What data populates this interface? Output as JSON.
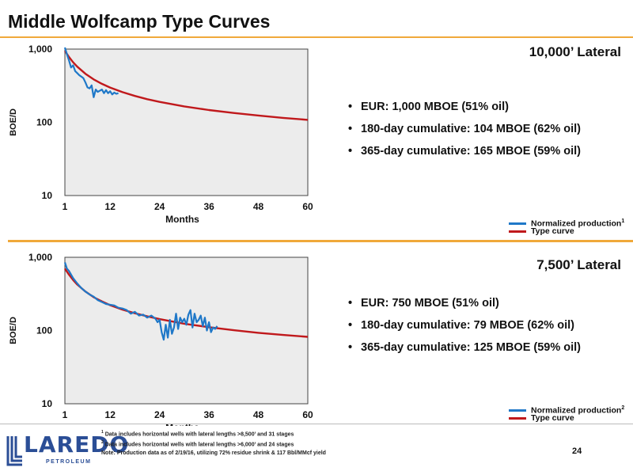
{
  "title": "Middle Wolfcamp Type Curves",
  "page_number": "24",
  "colors": {
    "accent_rule": "#f0a93a",
    "normalized_production": "#1f78c8",
    "type_curve": "#c0191c",
    "plot_fill": "#ececec",
    "logo_blue": "#2b4e96"
  },
  "logo": {
    "word": "LAREDO",
    "sub": "PETROLEUM"
  },
  "panels": [
    {
      "lateral": "10,000’ Lateral",
      "bullets": [
        "EUR:  1,000 MBOE (51% oil)",
        "180-day cumulative:  104 MBOE (62% oil)",
        "365-day cumulative: 165 MBOE (59% oil)"
      ],
      "legend": {
        "normalized_label": "Normalized production",
        "normalized_sup": "1",
        "type_label": "Type curve"
      }
    },
    {
      "lateral": "7,500’ Lateral",
      "bullets": [
        "EUR:  750 MBOE (51% oil)",
        "180-day cumulative: 79 MBOE (62% oil)",
        "365-day cumulative: 125 MBOE (59% oil)"
      ],
      "legend": {
        "normalized_label": "Normalized production",
        "normalized_sup": "2",
        "type_label": "Type curve"
      }
    }
  ],
  "footnotes": {
    "n1_sup": "1",
    "n1": " Data includes horizontal wells with lateral lengths >8,500’ and 31 stages",
    "n2_sup": "2",
    "n2": " Data includes horizontal wells with lateral lengths >6,000’ and 24 stages",
    "note": "Note: Production data as of 2/19/16, utilizing 72% residue shrink & 117 Bbl/MMcf yield"
  },
  "chart_data": [
    {
      "type": "line",
      "xlabel": "Months",
      "ylabel": "BOE/D",
      "y_scale": "log",
      "xlim": [
        1,
        60
      ],
      "ylim": [
        10,
        1000
      ],
      "x_ticks": [
        1,
        12,
        24,
        36,
        48,
        60
      ],
      "x_tick_labels": [
        "1",
        "12",
        "24",
        "36",
        "48",
        "60"
      ],
      "y_ticks": [
        10,
        100,
        1000
      ],
      "y_tick_labels": [
        "10",
        "100",
        "1,000"
      ],
      "grid": false,
      "legend_position": "bottom-right",
      "series": [
        {
          "name": "Normalized production",
          "color": "#1f78c8",
          "x": [
            1,
            1.5,
            2,
            2.5,
            3,
            3.5,
            4,
            4.5,
            5,
            5.5,
            6,
            6.5,
            7,
            7.5,
            8,
            8.5,
            9,
            9.5,
            10,
            10.5,
            11,
            11.5,
            12,
            12.5,
            13,
            13.5,
            14
          ],
          "y": [
            1050,
            850,
            700,
            560,
            600,
            500,
            470,
            440,
            420,
            400,
            350,
            300,
            290,
            320,
            220,
            280,
            260,
            270,
            280,
            250,
            275,
            250,
            265,
            240,
            255,
            245,
            250
          ]
        },
        {
          "name": "Type curve",
          "color": "#c0191c",
          "x": [
            1,
            2,
            3,
            4,
            6,
            8,
            10,
            12,
            15,
            18,
            21,
            24,
            30,
            36,
            42,
            48,
            54,
            60
          ],
          "y": [
            950,
            780,
            660,
            575,
            460,
            385,
            335,
            298,
            258,
            229,
            207,
            190,
            165,
            147,
            134,
            124,
            115,
            108
          ]
        }
      ]
    },
    {
      "type": "line",
      "xlabel": "Months",
      "ylabel": "BOE/D",
      "y_scale": "log",
      "xlim": [
        1,
        60
      ],
      "ylim": [
        10,
        1000
      ],
      "x_ticks": [
        1,
        12,
        24,
        36,
        48,
        60
      ],
      "x_tick_labels": [
        "1",
        "12",
        "24",
        "36",
        "48",
        "60"
      ],
      "y_ticks": [
        10,
        100,
        1000
      ],
      "y_tick_labels": [
        "10",
        "100",
        "1,000"
      ],
      "grid": false,
      "legend_position": "bottom-right",
      "series": [
        {
          "name": "Normalized production",
          "color": "#1f78c8",
          "x": [
            1,
            1.5,
            2,
            3,
            4,
            5,
            6,
            7,
            8,
            9,
            10,
            11,
            12,
            13,
            14,
            15,
            16,
            17,
            18,
            19,
            20,
            21,
            22,
            23,
            23.5,
            24,
            24.5,
            25,
            25.5,
            26,
            26.5,
            27,
            27.5,
            28,
            28.5,
            29,
            29.5,
            30,
            30.5,
            31,
            31.5,
            32,
            32.5,
            33,
            33.5,
            34,
            34.5,
            35,
            35.5,
            36,
            36.5,
            37,
            37.5,
            38
          ],
          "y": [
            850,
            700,
            650,
            520,
            440,
            380,
            340,
            310,
            290,
            260,
            245,
            230,
            225,
            220,
            205,
            200,
            190,
            170,
            180,
            160,
            165,
            150,
            160,
            145,
            130,
            140,
            95,
            75,
            120,
            80,
            140,
            90,
            110,
            170,
            105,
            150,
            130,
            145,
            120,
            165,
            190,
            110,
            170,
            130,
            140,
            160,
            115,
            150,
            100,
            130,
            95,
            110,
            105,
            115
          ]
        },
        {
          "name": "Type curve",
          "color": "#c0191c",
          "x": [
            1,
            2,
            3,
            4,
            6,
            8,
            10,
            12,
            15,
            18,
            21,
            24,
            30,
            36,
            42,
            48,
            54,
            60
          ],
          "y": [
            700,
            580,
            490,
            425,
            340,
            285,
            250,
            222,
            193,
            172,
            156,
            143,
            124,
            111,
            101,
            93,
            87,
            82
          ]
        }
      ]
    }
  ]
}
